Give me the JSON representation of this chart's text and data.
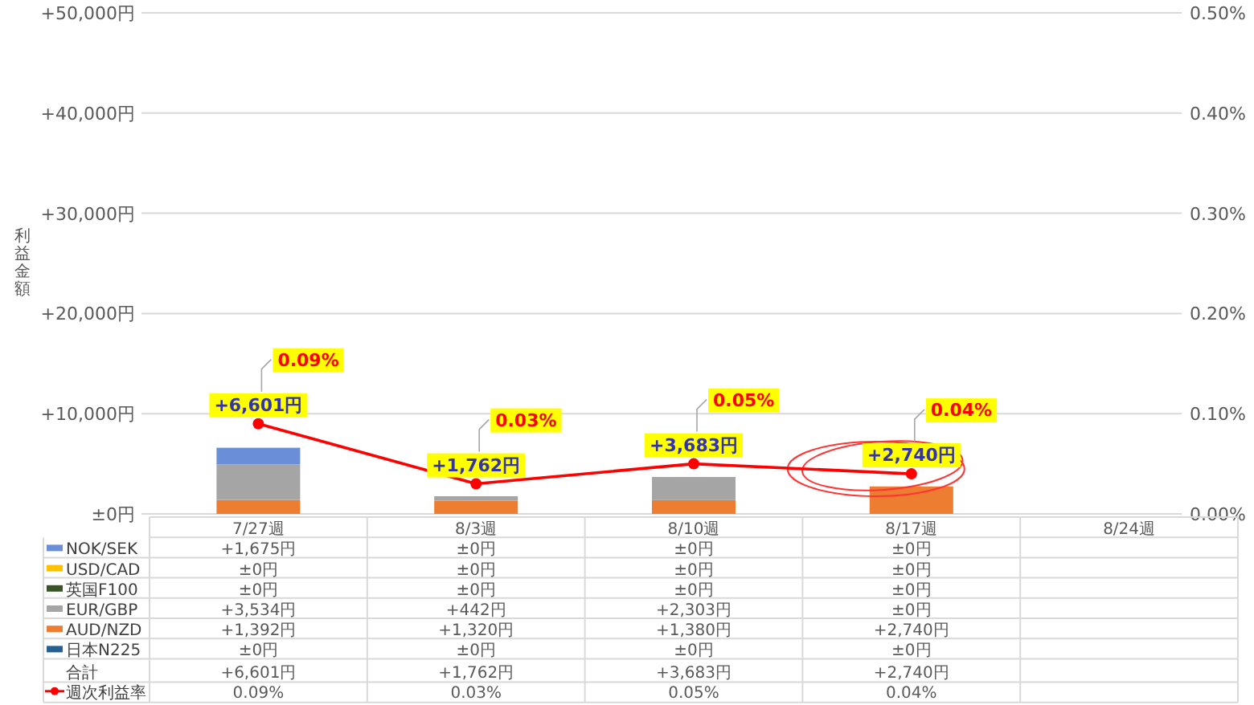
{
  "chart_data": {
    "type": "bar",
    "stacked": true,
    "ylabel": "利益金額",
    "categories": [
      "7/27週",
      "8/3週",
      "8/10週",
      "8/17週",
      "8/24週"
    ],
    "ylim": [
      0,
      50000
    ],
    "yticks": [
      {
        "value": 0,
        "label": "±0円"
      },
      {
        "value": 10000,
        "label": "+10,000円"
      },
      {
        "value": 20000,
        "label": "+20,000円"
      },
      {
        "value": 30000,
        "label": "+30,000円"
      },
      {
        "value": 40000,
        "label": "+40,000円"
      },
      {
        "value": 50000,
        "label": "+50,000円"
      }
    ],
    "y2lim": [
      0,
      0.5
    ],
    "y2ticks": [
      {
        "value": 0,
        "label": "0.00%"
      },
      {
        "value": 0.1,
        "label": "0.10%"
      },
      {
        "value": 0.2,
        "label": "0.20%"
      },
      {
        "value": 0.3,
        "label": "0.30%"
      },
      {
        "value": 0.4,
        "label": "0.40%"
      },
      {
        "value": 0.5,
        "label": "0.50%"
      }
    ],
    "grid": "y",
    "legend": "bottom",
    "marker": "circle",
    "series": [
      {
        "name": "日本N225",
        "color": "#255e91",
        "values": [
          0,
          0,
          0,
          0,
          null
        ],
        "value_labels": [
          "±0円",
          "±0円",
          "±0円",
          "±0円",
          null
        ]
      },
      {
        "name": "AUD/NZD",
        "color": "#ed7d31",
        "values": [
          1392,
          1320,
          1380,
          2740,
          null
        ],
        "value_labels": [
          "+1,392円",
          "+1,320円",
          "+1,380円",
          "+2,740円",
          null
        ]
      },
      {
        "name": "EUR/GBP",
        "color": "#a5a5a5",
        "values": [
          3534,
          442,
          2303,
          0,
          null
        ],
        "value_labels": [
          "+3,534円",
          "+442円",
          "+2,303円",
          "±0円",
          null
        ]
      },
      {
        "name": "英国F100",
        "color": "#375623",
        "values": [
          0,
          0,
          0,
          0,
          null
        ],
        "value_labels": [
          "±0円",
          "±0円",
          "±0円",
          "±0円",
          null
        ]
      },
      {
        "name": "USD/CAD",
        "color": "#ffc000",
        "values": [
          0,
          0,
          0,
          0,
          null
        ],
        "value_labels": [
          "±0円",
          "±0円",
          "±0円",
          "±0円",
          null
        ]
      },
      {
        "name": "NOK/SEK",
        "color": "#6a8fd8",
        "values": [
          1675,
          0,
          0,
          0,
          null
        ],
        "value_labels": [
          "+1,675円",
          "±0円",
          "±0円",
          "±0円",
          null
        ]
      },
      {
        "name": "週次利益率",
        "type": "line",
        "axis": "y2",
        "color": "#ff0000",
        "values": [
          0.09,
          0.03,
          0.05,
          0.04,
          null
        ],
        "value_labels": [
          "0.09%",
          "0.03%",
          "0.05%",
          "0.04%",
          null
        ]
      }
    ],
    "totals": [
      "+6,601円",
      "+1,762円",
      "+3,683円",
      "+2,740円",
      null
    ],
    "annotations": [
      "合計"
    ]
  }
}
